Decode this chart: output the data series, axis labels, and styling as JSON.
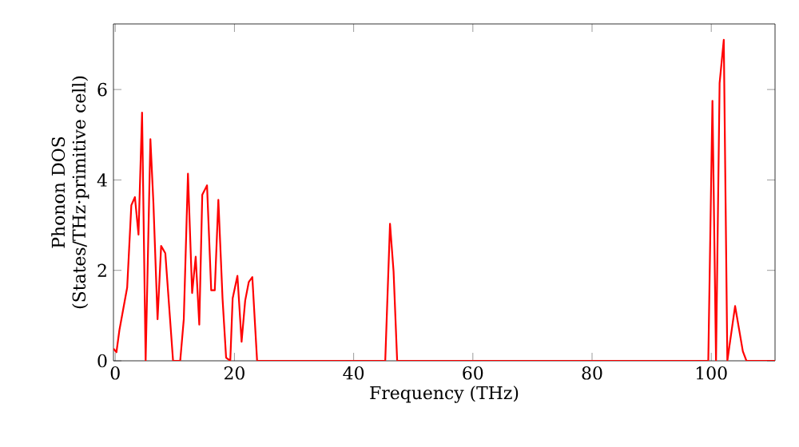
{
  "chart_data": {
    "type": "line",
    "xlabel": "Frequency (THz)",
    "ylabel": "Phonon DOS (States/THz·primitive cell)",
    "color": "#ff0000",
    "xlim": [
      -0.3,
      110.7
    ],
    "ylim": [
      0,
      7.45
    ],
    "xticks": [
      0,
      20,
      40,
      60,
      80,
      100
    ],
    "yticks": [
      0,
      2,
      4,
      6
    ],
    "grid": false,
    "marker": "none",
    "line_style": "solid",
    "x": [
      -0.3,
      0.2,
      0.7,
      2.0,
      2.7,
      3.3,
      3.9,
      4.5,
      5.1,
      5.9,
      6.4,
      7.1,
      7.7,
      8.4,
      9.7,
      10.9,
      11.5,
      12.2,
      12.9,
      13.5,
      14.1,
      14.6,
      15.4,
      16.1,
      16.7,
      17.3,
      18.0,
      18.6,
      19.3,
      19.7,
      20.5,
      21.2,
      21.8,
      22.4,
      23.0,
      23.8,
      45.3,
      46.1,
      46.7,
      47.3,
      99.5,
      100.2,
      100.8,
      101.4,
      102.1,
      102.7,
      104.0,
      105.3,
      105.9,
      110.7
    ],
    "values": [
      0.27,
      0.19,
      0.68,
      1.62,
      3.44,
      3.62,
      2.79,
      5.49,
      0,
      4.9,
      3.5,
      0.92,
      2.54,
      2.38,
      0,
      0,
      0.92,
      4.14,
      1.5,
      2.3,
      0.8,
      3.67,
      3.88,
      1.56,
      1.56,
      3.56,
      1.38,
      0.07,
      0,
      1.38,
      1.88,
      0.42,
      1.33,
      1.74,
      1.85,
      0,
      0,
      3.03,
      1.97,
      0,
      0,
      5.75,
      0,
      6.14,
      7.1,
      0,
      1.21,
      0.21,
      0,
      0
    ]
  }
}
